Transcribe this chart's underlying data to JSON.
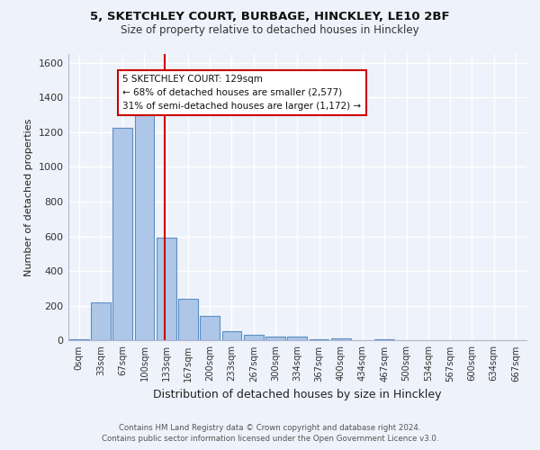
{
  "title_line1": "5, SKETCHLEY COURT, BURBAGE, HINCKLEY, LE10 2BF",
  "title_line2": "Size of property relative to detached houses in Hinckley",
  "xlabel": "Distribution of detached houses by size in Hinckley",
  "ylabel": "Number of detached properties",
  "footer_line1": "Contains HM Land Registry data © Crown copyright and database right 2024.",
  "footer_line2": "Contains public sector information licensed under the Open Government Licence v3.0.",
  "bar_labels": [
    "0sqm",
    "33sqm",
    "67sqm",
    "100sqm",
    "133sqm",
    "167sqm",
    "200sqm",
    "233sqm",
    "267sqm",
    "300sqm",
    "334sqm",
    "367sqm",
    "400sqm",
    "434sqm",
    "467sqm",
    "500sqm",
    "534sqm",
    "567sqm",
    "600sqm",
    "634sqm",
    "667sqm"
  ],
  "bar_values": [
    10,
    220,
    1225,
    1305,
    595,
    242,
    143,
    52,
    33,
    22,
    22,
    10,
    13,
    0,
    10,
    0,
    0,
    0,
    0,
    0,
    0
  ],
  "bar_color": "#aec6e8",
  "bar_edge_color": "#5b8ec4",
  "bg_color": "#eef2fa",
  "grid_color": "#ffffff",
  "vline_color": "#cc0000",
  "annotation_text": "5 SKETCHLEY COURT: 129sqm\n← 68% of detached houses are smaller (2,577)\n31% of semi-detached houses are larger (1,172) →",
  "annotation_box_color": "#ffffff",
  "annotation_box_edge": "#cc0000",
  "ylim": [
    0,
    1650
  ],
  "yticks": [
    0,
    200,
    400,
    600,
    800,
    1000,
    1200,
    1400,
    1600
  ],
  "vline_pos": 3.94
}
